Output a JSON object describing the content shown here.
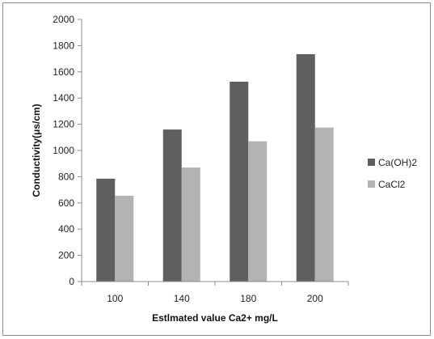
{
  "chart_data": {
    "type": "bar",
    "xlabel": "Estlmated value Ca2+ mg/L",
    "ylabel": "Conductivity(μs/cm)",
    "ylim": [
      0,
      2000
    ],
    "yticks": [
      0,
      200,
      400,
      600,
      800,
      1000,
      1200,
      1400,
      1600,
      1800,
      2000
    ],
    "categories": [
      "100",
      "140",
      "180",
      "200"
    ],
    "series": [
      {
        "name": "Ca(OH)2",
        "color": "#5f5f5f",
        "values": [
          785,
          1160,
          1525,
          1735
        ]
      },
      {
        "name": "CaCl2",
        "color": "#b3b3b3",
        "values": [
          655,
          870,
          1070,
          1175
        ]
      }
    ],
    "grid": false,
    "legend": "right"
  }
}
